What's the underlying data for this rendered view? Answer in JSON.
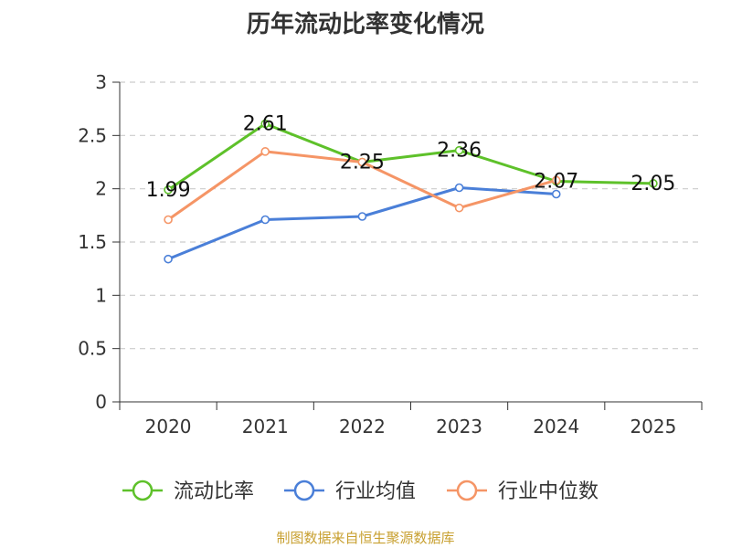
{
  "chart_data": {
    "type": "line",
    "title": "历年流动比率变化情况",
    "categories": [
      "2020",
      "2021",
      "2022",
      "2023",
      "2024",
      "2025"
    ],
    "ylim": [
      0,
      3
    ],
    "yticks": [
      "0",
      "0.5",
      "1",
      "1.5",
      "2",
      "2.5",
      "3"
    ],
    "grid": true,
    "legend_position": "bottom",
    "series": [
      {
        "name": "流动比率",
        "color": "#5ec12a",
        "values": [
          1.99,
          2.61,
          2.25,
          2.36,
          2.07,
          2.05
        ],
        "labels": [
          "1.99",
          "2.61",
          "2.25",
          "2.36",
          "2.07",
          "2.05"
        ]
      },
      {
        "name": "行业均值",
        "color": "#4a7fd8",
        "values": [
          1.34,
          1.71,
          1.74,
          2.01,
          1.95,
          null
        ]
      },
      {
        "name": "行业中位数",
        "color": "#f59566",
        "values": [
          1.71,
          2.35,
          2.25,
          1.82,
          2.08,
          null
        ]
      }
    ]
  },
  "source_note": "制图数据来自恒生聚源数据库"
}
